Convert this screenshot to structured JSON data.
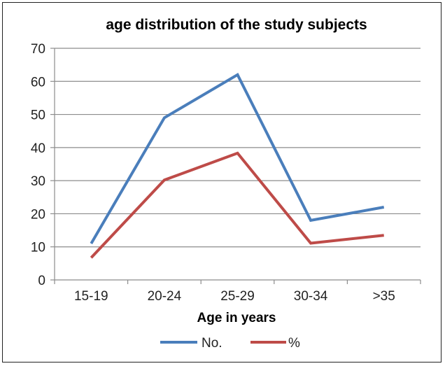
{
  "chart_data": {
    "type": "line",
    "title": "age  distribution of the study subjects",
    "xlabel": "Age in years",
    "ylabel": "",
    "categories": [
      "15-19",
      "20-24",
      "25-29",
      "30-34",
      ">35"
    ],
    "ylim": [
      0,
      70
    ],
    "yticks": [
      0,
      10,
      20,
      30,
      40,
      50,
      60,
      70
    ],
    "grid": true,
    "legend_position": "bottom",
    "series": [
      {
        "name": "No.",
        "color": "#4a7ebb",
        "values": [
          11,
          49,
          62,
          18,
          22
        ]
      },
      {
        "name": "%",
        "color": "#be4b48",
        "values": [
          6.7,
          30.2,
          38.3,
          11.1,
          13.5
        ]
      }
    ]
  }
}
